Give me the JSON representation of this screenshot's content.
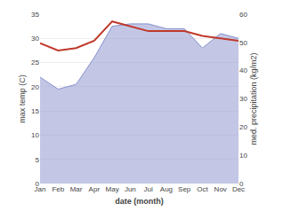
{
  "chart_data": {
    "type": "line",
    "categories": [
      "Jan",
      "Feb",
      "Mar",
      "Apr",
      "May",
      "Jun",
      "Jul",
      "Aug",
      "Sep",
      "Oct",
      "Nov",
      "Dec"
    ],
    "xlabel": "date (month)",
    "ylabel": "max temp (C)",
    "y2label": "med. precipitation (kg/m2)",
    "ylim": [
      0,
      35
    ],
    "yticks": [
      0,
      5,
      10,
      15,
      20,
      25,
      30,
      35
    ],
    "y2lim": [
      0,
      60
    ],
    "y2ticks": [
      0,
      10,
      20,
      30,
      40,
      50,
      60
    ],
    "grid": true,
    "series": [
      {
        "type": "area",
        "color": "#8890cc",
        "values": [
          22,
          19.5,
          20.5,
          26,
          32.5,
          33.0,
          33.0,
          32.0,
          32.0,
          28.0,
          31.0,
          30.0
        ]
      },
      {
        "type": "line",
        "color": "#c0392b",
        "values": [
          29.0,
          27.5,
          28.0,
          29.5,
          33.5,
          32.5,
          31.5,
          31.5,
          31.5,
          30.5,
          30.0,
          29.5
        ]
      }
    ]
  }
}
